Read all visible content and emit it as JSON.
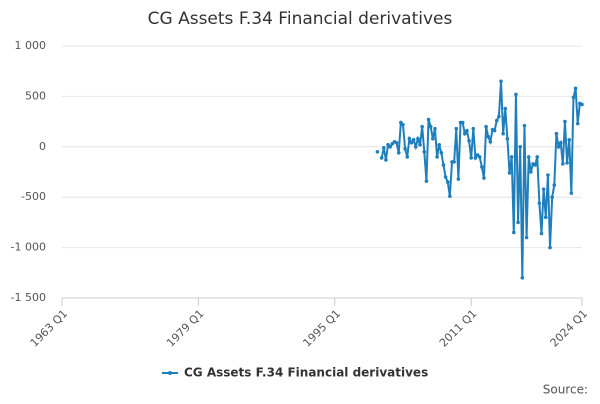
{
  "chart_data": {
    "type": "line",
    "title": "CG Assets F.34 Financial derivatives",
    "x": [
      "2000 Q1",
      "2000 Q2",
      "2000 Q3",
      "2000 Q4",
      "2001 Q1",
      "2001 Q2",
      "2001 Q3",
      "2001 Q4",
      "2002 Q1",
      "2002 Q2",
      "2002 Q3",
      "2002 Q4",
      "2003 Q1",
      "2003 Q2",
      "2003 Q3",
      "2003 Q4",
      "2004 Q1",
      "2004 Q2",
      "2004 Q3",
      "2004 Q4",
      "2005 Q1",
      "2005 Q2",
      "2005 Q3",
      "2005 Q4",
      "2006 Q1",
      "2006 Q2",
      "2006 Q3",
      "2006 Q4",
      "2007 Q1",
      "2007 Q2",
      "2007 Q3",
      "2007 Q4",
      "2008 Q1",
      "2008 Q2",
      "2008 Q3",
      "2008 Q4",
      "2009 Q1",
      "2009 Q2",
      "2009 Q3",
      "2009 Q4",
      "2010 Q1",
      "2010 Q2",
      "2010 Q3",
      "2010 Q4",
      "2011 Q1",
      "2011 Q2",
      "2011 Q3",
      "2011 Q4",
      "2012 Q1",
      "2012 Q2",
      "2012 Q3",
      "2012 Q4",
      "2013 Q1",
      "2013 Q2",
      "2013 Q3",
      "2013 Q4",
      "2014 Q1",
      "2014 Q2",
      "2014 Q3",
      "2014 Q4",
      "2015 Q1",
      "2015 Q2",
      "2015 Q3",
      "2015 Q4",
      "2016 Q1",
      "2016 Q2",
      "2016 Q3",
      "2016 Q4",
      "2017 Q1",
      "2017 Q2",
      "2017 Q3",
      "2017 Q4",
      "2018 Q1",
      "2018 Q2",
      "2018 Q3",
      "2018 Q4",
      "2019 Q1",
      "2019 Q2",
      "2019 Q3",
      "2019 Q4",
      "2020 Q1",
      "2020 Q2",
      "2020 Q3",
      "2020 Q4",
      "2021 Q1",
      "2021 Q2",
      "2021 Q3",
      "2021 Q4",
      "2022 Q1",
      "2022 Q2",
      "2022 Q3",
      "2022 Q4",
      "2023 Q1",
      "2023 Q2",
      "2023 Q3",
      "2023 Q4",
      "2024 Q1"
    ],
    "series": [
      {
        "name": "CG Assets F.34 Financial derivatives",
        "color": "#1f7fbd",
        "values": [
          -50,
          null,
          -110,
          -10,
          -130,
          20,
          0,
          30,
          50,
          40,
          -60,
          240,
          220,
          -20,
          -100,
          80,
          40,
          70,
          0,
          80,
          20,
          200,
          -50,
          -340,
          270,
          200,
          80,
          180,
          -100,
          20,
          -60,
          -180,
          -300,
          -350,
          -490,
          -150,
          -150,
          180,
          -320,
          240,
          240,
          130,
          160,
          60,
          -110,
          180,
          -110,
          -80,
          -100,
          -200,
          -310,
          200,
          100,
          50,
          170,
          160,
          260,
          300,
          650,
          130,
          380,
          80,
          -260,
          -100,
          -850,
          520,
          -750,
          0,
          -1300,
          210,
          -900,
          -100,
          -250,
          -170,
          -180,
          -100,
          -560,
          -860,
          -420,
          -700,
          -280,
          -1000,
          -500,
          -380,
          130,
          0,
          40,
          -170,
          250,
          -160,
          70,
          -460,
          490,
          580,
          230,
          430,
          420
        ]
      }
    ],
    "xlim": [
      "1963 Q1",
      "2024 Q1"
    ],
    "xticks": [
      "1963 Q1",
      "1979 Q1",
      "1995 Q1",
      "2011 Q1",
      "2024 Q1"
    ],
    "ylim": [
      -1500,
      1000
    ],
    "yticks": [
      {
        "value": -1500,
        "label": "-1 500"
      },
      {
        "value": -1000,
        "label": "-1 000"
      },
      -500,
      0,
      500,
      {
        "value": 1000,
        "label": "1 000"
      }
    ],
    "grid": true,
    "legend": "bottom",
    "source": "Source:"
  }
}
